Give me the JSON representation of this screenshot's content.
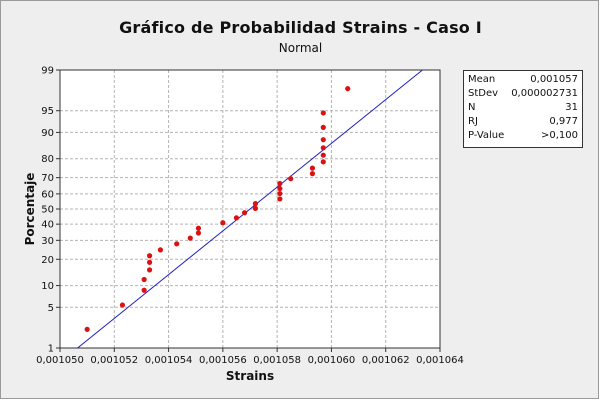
{
  "chart_data": {
    "type": "scatter",
    "title": "Gráfico de Probabilidad Strains - Caso I",
    "subtitle": "Normal",
    "xlabel": "Strains",
    "ylabel": "Porcentaje",
    "y_scale": "normal-probability",
    "xlim": [
      0.00105,
      0.001064
    ],
    "ylim": [
      1,
      99
    ],
    "x_ticks": [
      0.00105,
      0.001052,
      0.001054,
      0.001056,
      0.001058,
      0.00106,
      0.001062,
      0.001064
    ],
    "x_tick_labels": [
      "0,001050",
      "0,001052",
      "0,001054",
      "0,001056",
      "0,001058",
      "0,001060",
      "0,001062",
      "0,001064"
    ],
    "y_ticks": [
      1,
      5,
      10,
      20,
      30,
      40,
      50,
      60,
      70,
      80,
      90,
      95,
      99
    ],
    "y_tick_labels": [
      "1",
      "5",
      "10",
      "20",
      "30",
      "40",
      "50",
      "60",
      "70",
      "80",
      "90",
      "95",
      "99"
    ],
    "grid": true,
    "fit_line": {
      "mean": 0.001057,
      "stdev": 2.731e-06,
      "color": "#1f1fbf"
    },
    "series": [
      {
        "color": "#dd1111",
        "points": [
          [
            0.001051,
            2.2
          ],
          [
            0.0010523,
            5.4
          ],
          [
            0.0010531,
            8.7
          ],
          [
            0.0010531,
            11.9
          ],
          [
            0.0010533,
            15.4
          ],
          [
            0.0010533,
            18.6
          ],
          [
            0.0010533,
            21.7
          ],
          [
            0.0010537,
            24.7
          ],
          [
            0.0010543,
            28.0
          ],
          [
            0.0010548,
            31.3
          ],
          [
            0.0010551,
            34.4
          ],
          [
            0.0010551,
            37.4
          ],
          [
            0.001056,
            40.9
          ],
          [
            0.0010565,
            44.1
          ],
          [
            0.0010568,
            47.5
          ],
          [
            0.0010572,
            50.4
          ],
          [
            0.0010572,
            53.6
          ],
          [
            0.0010581,
            56.7
          ],
          [
            0.0010581,
            60.2
          ],
          [
            0.0010581,
            63.4
          ],
          [
            0.0010581,
            66.5
          ],
          [
            0.0010585,
            69.4
          ],
          [
            0.0010593,
            72.3
          ],
          [
            0.0010593,
            75.3
          ],
          [
            0.0010597,
            78.5
          ],
          [
            0.0010597,
            81.6
          ],
          [
            0.0010597,
            84.7
          ],
          [
            0.0010597,
            87.7
          ],
          [
            0.0010597,
            91.4
          ],
          [
            0.0010597,
            94.6
          ],
          [
            0.0010606,
            97.8
          ]
        ]
      }
    ]
  },
  "stats": [
    {
      "label": "Mean",
      "value": "0,001057"
    },
    {
      "label": "StDev",
      "value": "0,000002731"
    },
    {
      "label": "N",
      "value": "31"
    },
    {
      "label": "RJ",
      "value": "0,977"
    },
    {
      "label": "P-Value",
      "value": ">0,100"
    }
  ]
}
